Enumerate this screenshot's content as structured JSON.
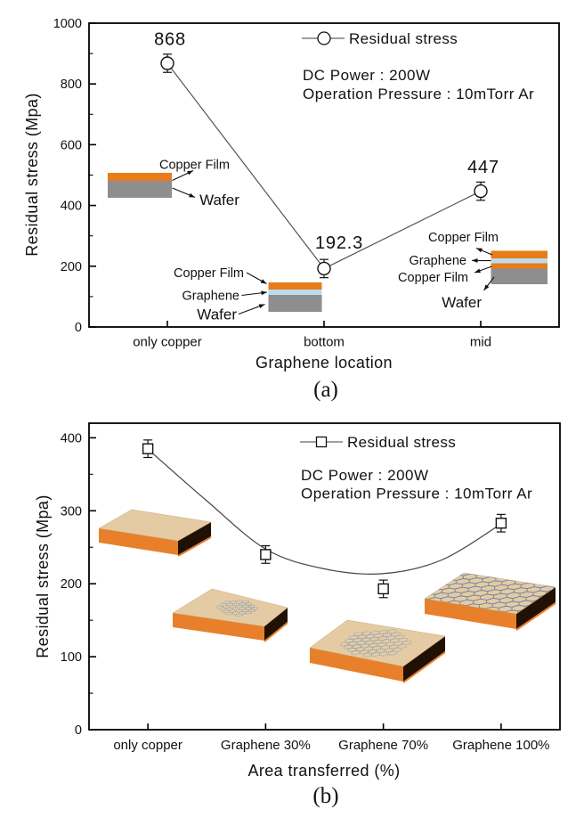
{
  "figure": {
    "background": "#ffffff",
    "captions": {
      "a": "(a)",
      "b": "(b)"
    },
    "colors": {
      "copper": "#e87c1a",
      "wafer": "#8e8e8e",
      "graphene": "#bcdcec",
      "slab_top": "#e5cba3",
      "slab_front": "#e8802b",
      "slab_side": "#211104",
      "hex_full": "#7088a6",
      "hex_patch": "#8ca1b8",
      "line": "#555555",
      "ink": "#111111"
    }
  },
  "chart_data": [
    {
      "id": "a",
      "type": "line",
      "title": "",
      "xlabel": "Graphene location",
      "ylabel": "Residual stress (Mpa)",
      "ylim": [
        0,
        1000
      ],
      "yticks": [
        0,
        200,
        400,
        600,
        800,
        1000
      ],
      "yminor_step": 100,
      "grid": false,
      "legend": {
        "label": "Residual stress",
        "marker": "circle",
        "position": "top-inside"
      },
      "annotations": [
        "DC Power : 200W",
        "Operation Pressure : 10mTorr Ar"
      ],
      "categories": [
        "only copper",
        "bottom",
        "mid"
      ],
      "series": [
        {
          "name": "Residual stress",
          "marker": "circle",
          "values": [
            868,
            192.3,
            447
          ],
          "errors": [
            30,
            30,
            30
          ],
          "point_labels": [
            "868",
            "192.3",
            "447"
          ]
        }
      ],
      "caption": "(a)",
      "insets": [
        {
          "name": "stack-only-copper",
          "layers": [
            {
              "label": "Copper Film",
              "color": "copper"
            },
            {
              "label": "Wafer",
              "color": "wafer"
            }
          ]
        },
        {
          "name": "stack-graphene-bottom",
          "layers": [
            {
              "label": "Copper Film",
              "color": "copper"
            },
            {
              "label": "Graphene",
              "color": "graphene"
            },
            {
              "label": "Wafer",
              "color": "wafer"
            }
          ]
        },
        {
          "name": "stack-graphene-mid",
          "layers": [
            {
              "label": "Copper Film",
              "color": "copper"
            },
            {
              "label": "Graphene",
              "color": "graphene"
            },
            {
              "label": "Copper Film",
              "color": "copper"
            },
            {
              "label": "Wafer",
              "color": "wafer"
            }
          ]
        }
      ]
    },
    {
      "id": "b",
      "type": "line",
      "title": "",
      "xlabel": "Area transferred (%)",
      "ylabel": "Residual stress (Mpa)",
      "ylim": [
        0,
        420
      ],
      "yticks": [
        0,
        100,
        200,
        300,
        400
      ],
      "yminor_step": 50,
      "grid": false,
      "legend": {
        "label": "Residual stress",
        "marker": "square",
        "position": "top-inside"
      },
      "annotations": [
        "DC Power : 200W",
        "Operation Pressure : 10mTorr Ar"
      ],
      "categories": [
        "only copper",
        "Graphene 30%",
        "Graphene 70%",
        "Graphene 100%"
      ],
      "series": [
        {
          "name": "Residual stress",
          "marker": "square",
          "values": [
            385,
            240,
            193,
            283
          ],
          "errors": [
            12,
            12,
            12,
            12
          ]
        }
      ],
      "fit_curve": true,
      "caption": "(b)",
      "slabs": [
        {
          "name": "slab-only-copper",
          "coverage_percent": 0
        },
        {
          "name": "slab-graphene-30",
          "coverage_percent": 30
        },
        {
          "name": "slab-graphene-70",
          "coverage_percent": 70
        },
        {
          "name": "slab-graphene-100",
          "coverage_percent": 100
        }
      ]
    }
  ]
}
